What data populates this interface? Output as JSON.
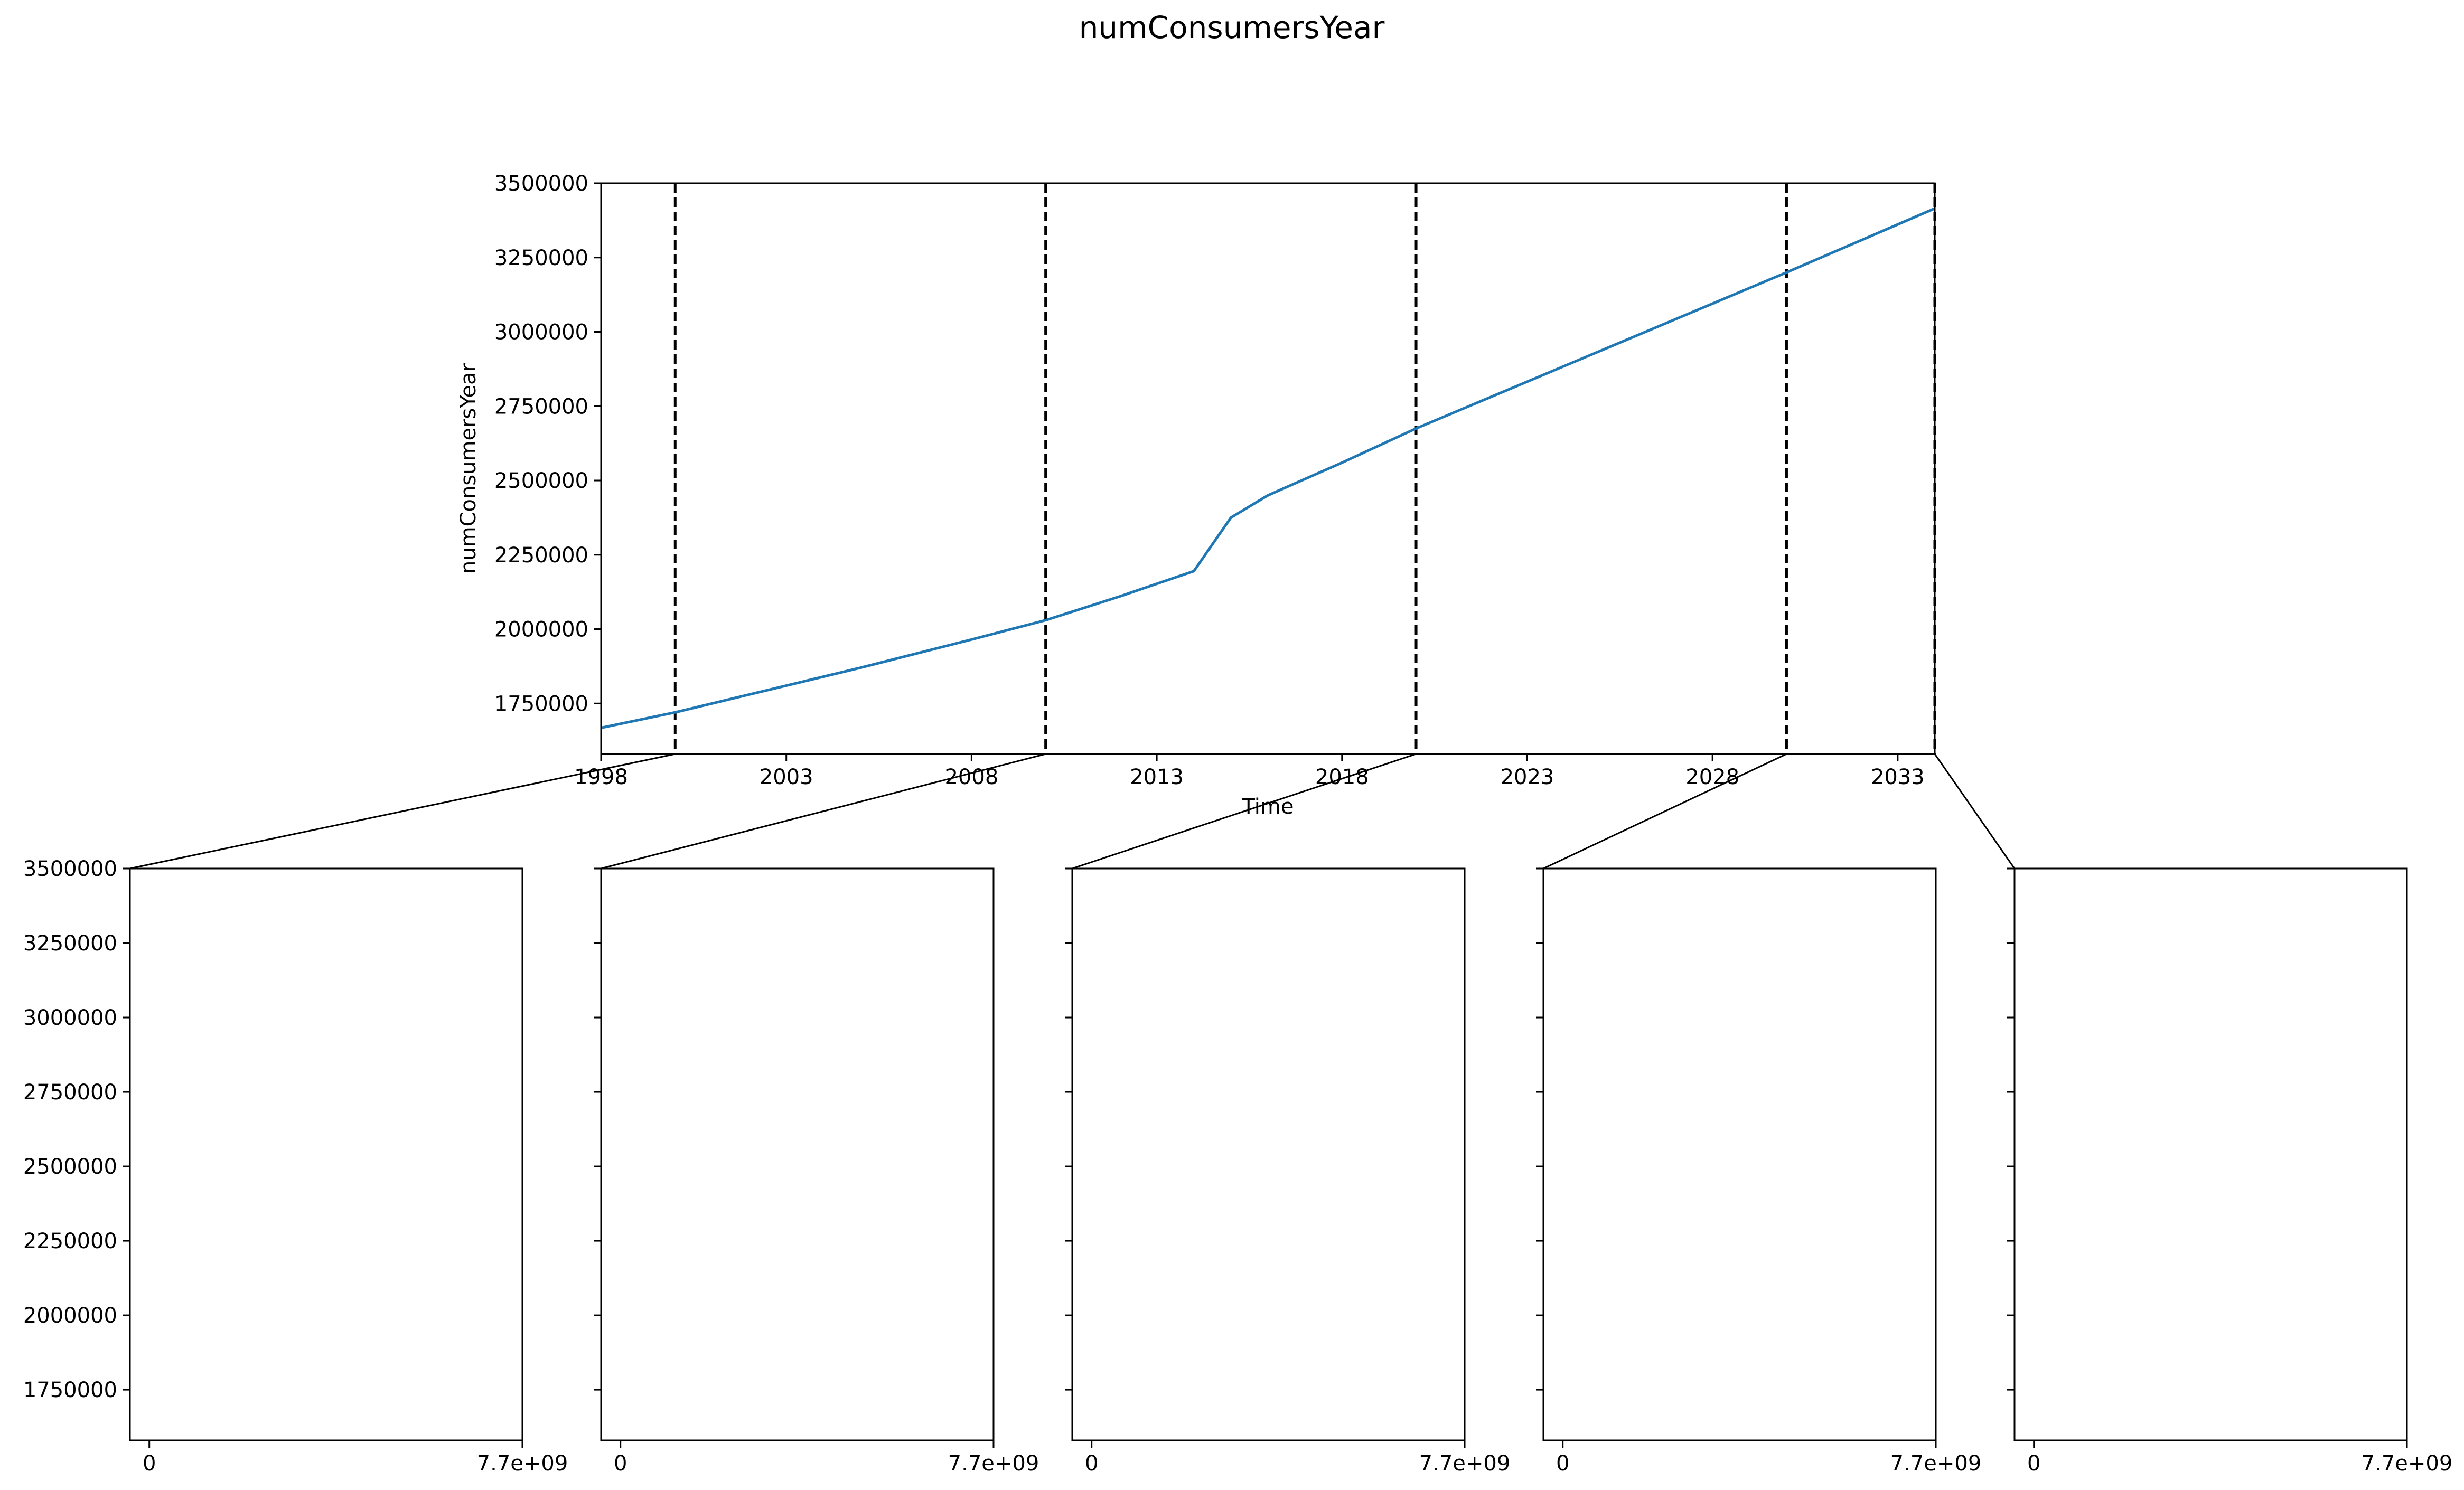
{
  "chart_data": {
    "type": "line",
    "title": "numConsumersYear",
    "main_panel": {
      "xlabel": "Time",
      "ylabel": "numConsumersYear",
      "xlim": [
        1998,
        2034
      ],
      "ylim": [
        1580000,
        3500000
      ],
      "x_ticks": [
        "1998",
        "2003",
        "2008",
        "2013",
        "2018",
        "2023",
        "2028",
        "2033"
      ],
      "y_ticks": [
        "1750000",
        "2000000",
        "2250000",
        "2500000",
        "2750000",
        "3000000",
        "3250000",
        "3500000"
      ],
      "grid": false,
      "colors": {
        "line": "#1f77b4",
        "markers": "#000000"
      },
      "series": [
        {
          "x": [
            1998,
            2000,
            2005,
            2008,
            2010,
            2012,
            2014,
            2015,
            2016,
            2018,
            2020,
            2024,
            2028,
            2030,
            2034
          ],
          "values": [
            1668000,
            1720000,
            1870000,
            1965000,
            2030000,
            2110000,
            2195000,
            2375000,
            2450000,
            2560000,
            2675000,
            2885000,
            3095000,
            3200000,
            3415000
          ]
        }
      ],
      "vertical_markers": [
        2000,
        2010,
        2020,
        2030,
        2034
      ]
    },
    "sub_panels": {
      "count": 5,
      "ylim": [
        1580000,
        3500000
      ],
      "y_ticks": [
        "1750000",
        "2000000",
        "2250000",
        "2500000",
        "2750000",
        "3000000",
        "3250000",
        "3500000"
      ],
      "xlim": [
        -400000000,
        7700000000
      ],
      "x_ticks": [
        0,
        7700000000
      ],
      "x_tick_labels": [
        "0",
        "7.7e+09"
      ]
    }
  }
}
